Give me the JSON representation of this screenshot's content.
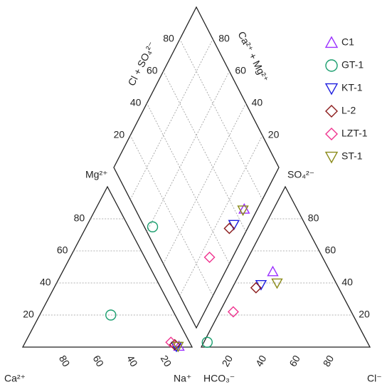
{
  "chart_data": {
    "type": "piper",
    "scale": [
      0,
      100
    ],
    "grid": true,
    "legend": "top-right",
    "labels": {
      "ca": "Ca²⁺",
      "mg": "Mg²⁺",
      "na": "Na⁺",
      "hco3": "HCO₃⁻",
      "so4": "SO₄²⁻",
      "cl": "Cl⁻",
      "cl_so4": "Cl + SO₄²⁻",
      "ca_mg": "Ca²⁺ + Mg²⁺"
    },
    "mg_ticks": [
      20,
      40,
      60,
      80
    ],
    "ca_ticks": [
      80,
      60,
      40,
      20
    ],
    "so4_ticks": [
      20,
      40,
      60,
      80
    ],
    "cl_ticks": [
      20,
      40,
      60,
      80
    ],
    "cl_so4_ticks": [
      20,
      40,
      60,
      80
    ],
    "ca_mg_ticks": [
      20,
      40,
      60,
      80
    ],
    "series": [
      {
        "name": "C1",
        "color": "#9b30ff",
        "marker": "triangle-up",
        "ca": 7.5,
        "mg": 0.5,
        "na": 92,
        "hco3": 34,
        "so4": 47,
        "cl": 19
      },
      {
        "name": "GT-1",
        "color": "#1a9e6e",
        "marker": "circle",
        "ca": 38,
        "mg": 20,
        "na": 42,
        "hco3": 95,
        "so4": 3,
        "cl": 2
      },
      {
        "name": "KT-1",
        "color": "#1f1fe0",
        "marker": "triangle-down",
        "ca": 9,
        "mg": 0.5,
        "na": 90.5,
        "hco3": 45,
        "so4": 39,
        "cl": 16
      },
      {
        "name": "L-2",
        "color": "#8b1a1a",
        "marker": "diamond",
        "ca": 9.5,
        "mg": 1.5,
        "na": 89,
        "hco3": 49,
        "so4": 37,
        "cl": 14
      },
      {
        "name": "LZT-1",
        "color": "#f0338f",
        "marker": "diamond",
        "ca": 11,
        "mg": 3,
        "na": 86,
        "hco3": 70,
        "so4": 22,
        "cl": 8
      },
      {
        "name": "ST-1",
        "color": "#8b8b1a",
        "marker": "triangle-down",
        "ca": 8,
        "mg": 0.5,
        "na": 91.5,
        "hco3": 35,
        "so4": 40,
        "cl": 25
      }
    ]
  }
}
